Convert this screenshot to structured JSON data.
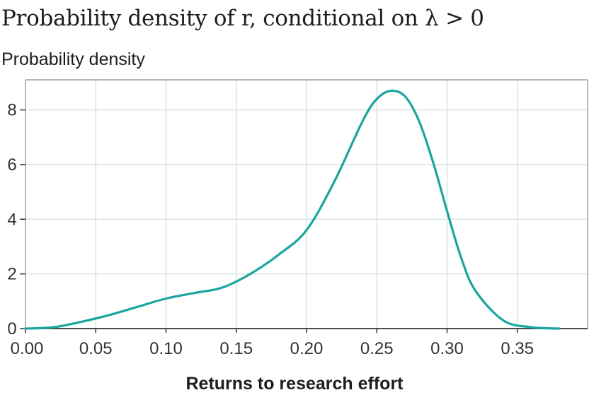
{
  "chart_data": {
    "type": "line",
    "title": "Probability density of r, conditional on λ > 0",
    "ylabel": "Probability density",
    "xlabel": "Returns to research effort",
    "xlim": [
      0.0,
      0.4
    ],
    "ylim": [
      0,
      9.1
    ],
    "xticks": [
      0.0,
      0.05,
      0.1,
      0.15,
      0.2,
      0.25,
      0.3,
      0.35
    ],
    "xtick_labels": [
      "0.00",
      "0.05",
      "0.10",
      "0.15",
      "0.20",
      "0.25",
      "0.30",
      "0.35"
    ],
    "yticks": [
      0,
      2,
      4,
      6,
      8
    ],
    "ytick_labels": [
      "0",
      "2",
      "4",
      "6",
      "8"
    ],
    "grid": true,
    "series": [
      {
        "name": "density",
        "color": "#19a5a0",
        "x": [
          0.0,
          0.02,
          0.04,
          0.06,
          0.08,
          0.1,
          0.12,
          0.14,
          0.16,
          0.18,
          0.2,
          0.22,
          0.24,
          0.25,
          0.26,
          0.27,
          0.28,
          0.29,
          0.3,
          0.31,
          0.32,
          0.34,
          0.36,
          0.38
        ],
        "y": [
          0.0,
          0.05,
          0.25,
          0.5,
          0.8,
          1.1,
          1.3,
          1.5,
          2.0,
          2.7,
          3.6,
          5.4,
          7.6,
          8.4,
          8.7,
          8.5,
          7.6,
          6.1,
          4.3,
          2.6,
          1.4,
          0.3,
          0.05,
          0.0
        ]
      }
    ]
  },
  "colors": {
    "line": "#19a5a0",
    "grid": "#d9e2e6",
    "frame": "#9aa3a8",
    "text": "#1d1d1d"
  }
}
